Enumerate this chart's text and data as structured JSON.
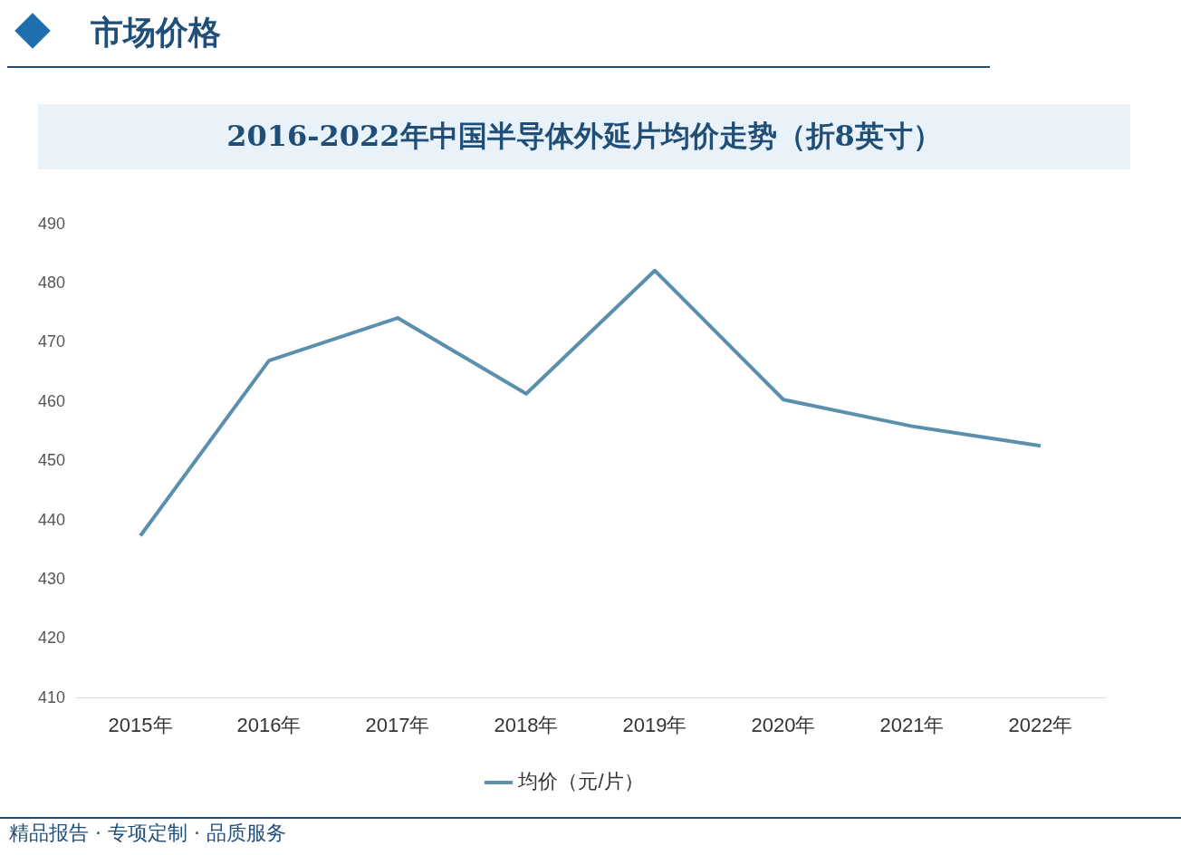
{
  "chart_data": {
    "type": "line",
    "title": "2016-2022年中国半导体外延片均价走势（折8英寸）",
    "categories": [
      "2015年",
      "2016年",
      "2017年",
      "2018年",
      "2019年",
      "2020年",
      "2021年",
      "2022年"
    ],
    "series": [
      {
        "name": "均价（元/片）",
        "color": "#5a8fae",
        "values": [
          437.4,
          467,
          474.2,
          461.4,
          482.2,
          460.4,
          455.9,
          452.6
        ]
      }
    ],
    "ylim": [
      410,
      490
    ],
    "yticks": [
      410,
      420,
      430,
      440,
      450,
      460,
      470,
      480,
      490
    ],
    "grid": false,
    "legend": "bottom",
    "marker": "none",
    "line_style": "solid",
    "annotations": [
      "市场价格",
      "精品报告 · 专项定制 · 品质服务"
    ]
  }
}
